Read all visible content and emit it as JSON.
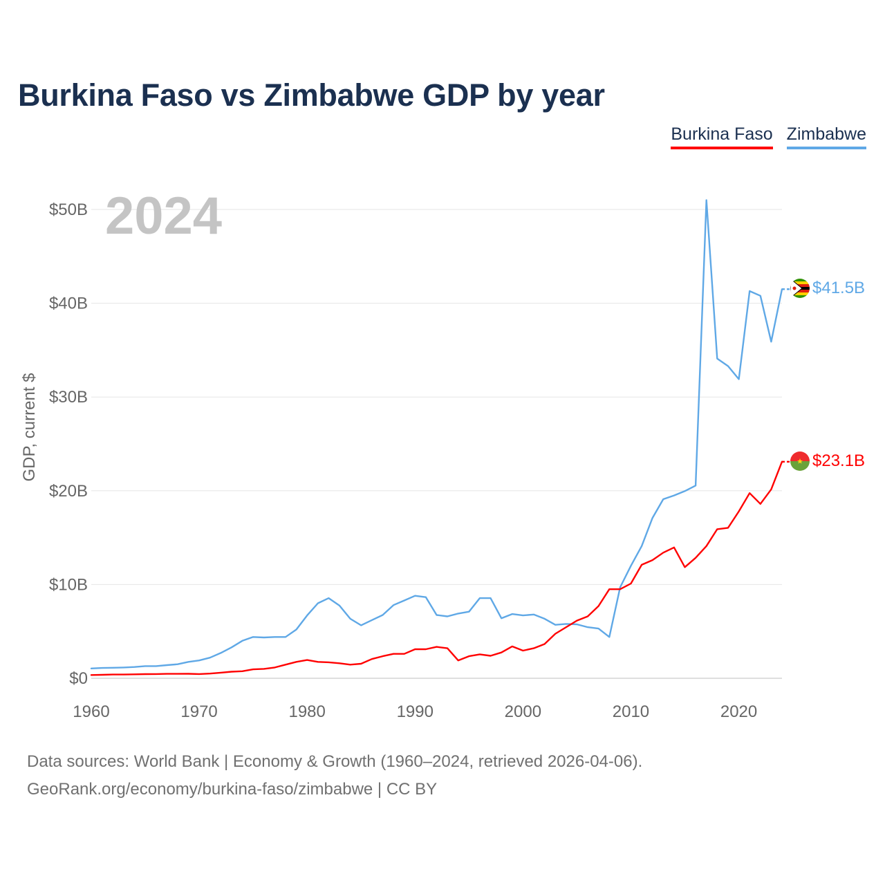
{
  "title": "Burkina Faso vs Zimbabwe GDP by year",
  "legend": {
    "bf": "Burkina Faso",
    "zw": "Zimbabwe"
  },
  "footer": {
    "line1": "Data sources: World Bank | Economy & Growth (1960–2024, retrieved 2026-04-06).",
    "line2": "GeoRank.org/economy/burkina-faso/zimbabwe | CC BY"
  },
  "chart_data": {
    "type": "line",
    "title": "Burkina Faso vs Zimbabwe GDP by year",
    "xlabel": "",
    "ylabel": "GDP, current $",
    "year_label": "2024",
    "xlim": [
      1960,
      2024
    ],
    "ylim": [
      0,
      50
    ],
    "x_ticks": [
      1960,
      1970,
      1980,
      1990,
      2000,
      2010,
      2020
    ],
    "y_ticks": [
      {
        "value": 0,
        "label": "$0"
      },
      {
        "value": 10,
        "label": "$10B"
      },
      {
        "value": 20,
        "label": "$20B"
      },
      {
        "value": 30,
        "label": "$30B"
      },
      {
        "value": 40,
        "label": "$40B"
      },
      {
        "value": 50,
        "label": "$50B"
      }
    ],
    "grid": true,
    "x": [
      1960,
      1961,
      1962,
      1963,
      1964,
      1965,
      1966,
      1967,
      1968,
      1969,
      1970,
      1971,
      1972,
      1973,
      1974,
      1975,
      1976,
      1977,
      1978,
      1979,
      1980,
      1981,
      1982,
      1983,
      1984,
      1985,
      1986,
      1987,
      1988,
      1989,
      1990,
      1991,
      1992,
      1993,
      1994,
      1995,
      1996,
      1997,
      1998,
      1999,
      2000,
      2001,
      2002,
      2003,
      2004,
      2005,
      2006,
      2007,
      2008,
      2009,
      2010,
      2011,
      2012,
      2013,
      2014,
      2015,
      2016,
      2017,
      2018,
      2019,
      2020,
      2021,
      2022,
      2023,
      2024
    ],
    "series": [
      {
        "name": "Zimbabwe",
        "color": "#5fa8e6",
        "end_label": "$41.5B",
        "values": [
          1.05,
          1.1,
          1.12,
          1.15,
          1.2,
          1.3,
          1.3,
          1.4,
          1.5,
          1.75,
          1.9,
          2.2,
          2.7,
          3.3,
          4.0,
          4.4,
          4.35,
          4.4,
          4.4,
          5.2,
          6.7,
          8.0,
          8.55,
          7.75,
          6.35,
          5.65,
          6.2,
          6.75,
          7.8,
          8.3,
          8.8,
          8.65,
          6.75,
          6.6,
          6.9,
          7.1,
          8.55,
          8.55,
          6.4,
          6.85,
          6.7,
          6.8,
          6.35,
          5.7,
          5.8,
          5.75,
          5.45,
          5.3,
          4.4,
          9.7,
          12.0,
          14.1,
          17.1,
          19.1,
          19.5,
          19.96,
          20.55,
          51.0,
          34.1,
          33.3,
          31.9,
          41.3,
          40.8,
          35.9,
          41.5
        ]
      },
      {
        "name": "Burkina Faso",
        "color": "#ff0000",
        "end_label": "$23.1B",
        "values": [
          0.35,
          0.37,
          0.4,
          0.4,
          0.42,
          0.44,
          0.45,
          0.47,
          0.47,
          0.48,
          0.45,
          0.5,
          0.6,
          0.7,
          0.75,
          0.95,
          1.0,
          1.15,
          1.45,
          1.75,
          1.95,
          1.75,
          1.7,
          1.6,
          1.45,
          1.55,
          2.05,
          2.35,
          2.6,
          2.6,
          3.1,
          3.1,
          3.35,
          3.2,
          1.9,
          2.35,
          2.55,
          2.4,
          2.75,
          3.4,
          2.95,
          3.2,
          3.65,
          4.75,
          5.45,
          6.15,
          6.6,
          7.7,
          9.5,
          9.5,
          10.1,
          12.1,
          12.6,
          13.4,
          13.95,
          11.85,
          12.85,
          14.1,
          15.9,
          16.05,
          17.8,
          19.75,
          18.6,
          20.15,
          23.1
        ]
      }
    ]
  }
}
